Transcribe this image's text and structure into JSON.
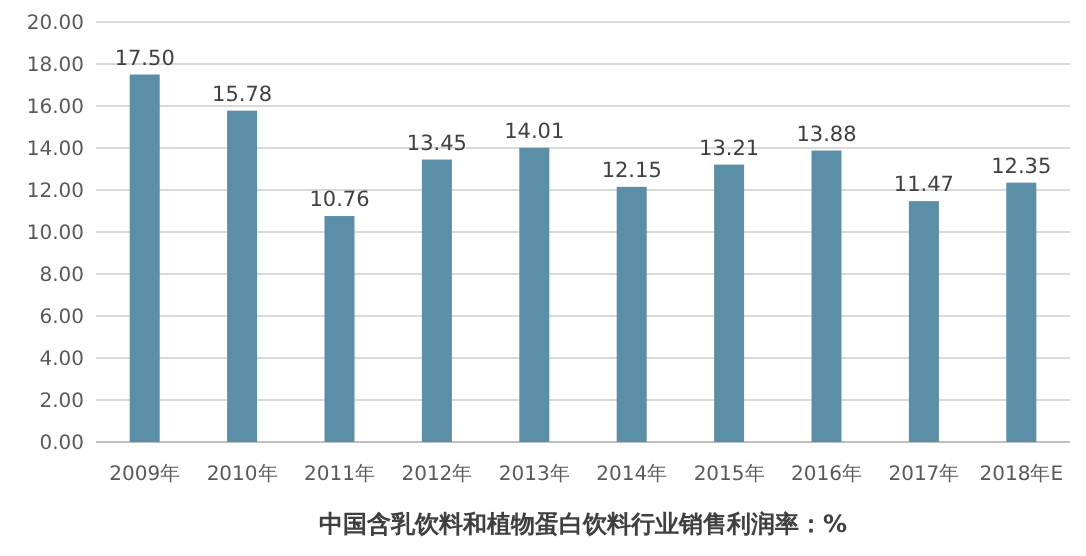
{
  "chart_data": {
    "type": "bar",
    "xlabel": "中国含乳饮料和植物蛋白饮料行业销售利润率：%",
    "categories": [
      "2009年",
      "2010年",
      "2011年",
      "2012年",
      "2013年",
      "2014年",
      "2015年",
      "2016年",
      "2017年",
      "2018年E"
    ],
    "values": [
      17.5,
      15.78,
      10.76,
      13.45,
      14.01,
      12.15,
      13.21,
      13.88,
      11.47,
      12.35
    ],
    "value_labels": [
      "17.50",
      "15.78",
      "10.76",
      "13.45",
      "14.01",
      "12.15",
      "13.21",
      "13.88",
      "11.47",
      "12.35"
    ],
    "color": "#5b8fa7",
    "ylim": [
      0,
      20
    ],
    "yticks": [
      {
        "value": 0,
        "label": "0.00"
      },
      {
        "value": 2,
        "label": "2.00"
      },
      {
        "value": 4,
        "label": "4.00"
      },
      {
        "value": 6,
        "label": "6.00"
      },
      {
        "value": 8,
        "label": "8.00"
      },
      {
        "value": 10,
        "label": "10.00"
      },
      {
        "value": 12,
        "label": "12.00"
      },
      {
        "value": 14,
        "label": "14.00"
      },
      {
        "value": 16,
        "label": "16.00"
      },
      {
        "value": 18,
        "label": "18.00"
      },
      {
        "value": 20,
        "label": "20.00"
      }
    ],
    "grid": "y"
  }
}
